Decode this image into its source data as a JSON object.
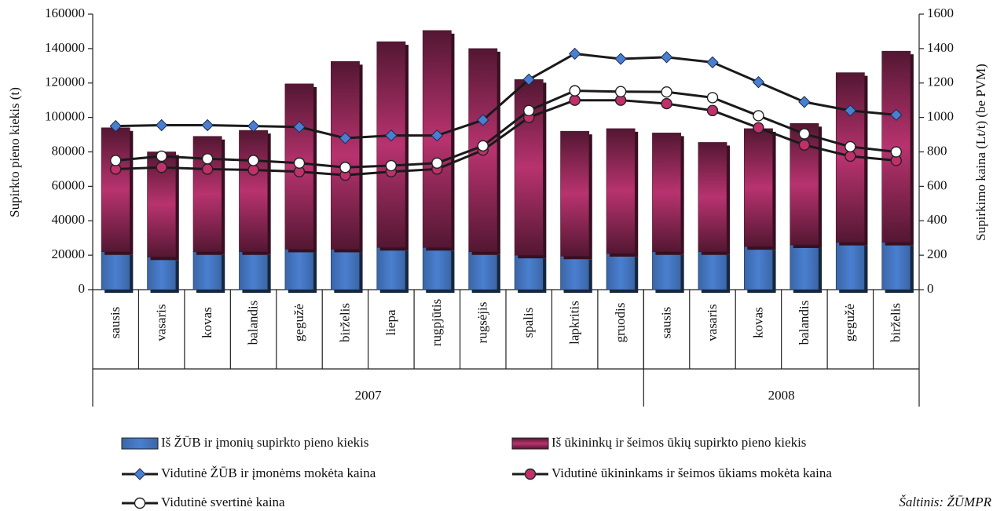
{
  "chart_data": {
    "type": "bar",
    "y_label": "Supirkto pieno kiekis (t)",
    "y2_label": "Supirkimo kaina (Lt/t) (be PVM)",
    "categories": [
      "sausis",
      "vasaris",
      "kovas",
      "balandis",
      "gegužė",
      "birželis",
      "liepa",
      "rugpjūtis",
      "rugsėjis",
      "spalis",
      "lapkritis",
      "gruodis",
      "sausis",
      "vasaris",
      "kovas",
      "balandis",
      "gegužė",
      "birželis"
    ],
    "groups": [
      {
        "name": "2007",
        "count": 12
      },
      {
        "name": "2008",
        "count": 6
      }
    ],
    "ylim": [
      0,
      160000
    ],
    "yticks": [
      0,
      20000,
      40000,
      60000,
      80000,
      100000,
      120000,
      140000,
      160000
    ],
    "y2lim": [
      0,
      1600
    ],
    "y2ticks": [
      0,
      200,
      400,
      600,
      800,
      1000,
      1200,
      1400,
      1600
    ],
    "stacked": true,
    "series": [
      {
        "name": "Iš ŽŪB ir įmonių supirkto pieno kiekis",
        "type": "bar",
        "color": "#4a7fd0",
        "values": [
          22000,
          19000,
          22000,
          22000,
          23500,
          23500,
          24500,
          24500,
          22000,
          20000,
          19500,
          21000,
          22000,
          22000,
          25000,
          26000,
          27500,
          27500
        ]
      },
      {
        "name": "Iš ūkininkų ir šeimos ūkių supirkto pieno kiekis",
        "type": "bar",
        "color": "#b8336f",
        "values": [
          72000,
          61000,
          67000,
          70500,
          96000,
          109000,
          119500,
          126000,
          118000,
          102000,
          72500,
          72500,
          69000,
          63500,
          68500,
          70500,
          98500,
          111000
        ]
      },
      {
        "name": "Vidutinė ŽŪB ir įmonėms mokėta kaina",
        "type": "line",
        "axis": "y2",
        "color": "#4a7fd0",
        "marker": "diamond",
        "values": [
          950,
          955,
          955,
          950,
          945,
          880,
          895,
          895,
          985,
          1220,
          1370,
          1340,
          1350,
          1320,
          1205,
          1090,
          1040,
          1015
        ]
      },
      {
        "name": "Vidutinė ūkininkams ir šeimos ūkiams mokėta kaina",
        "type": "line",
        "axis": "y2",
        "color": "#c0306a",
        "marker": "circle",
        "values": [
          700,
          710,
          700,
          695,
          685,
          665,
          685,
          700,
          810,
          1000,
          1100,
          1100,
          1080,
          1040,
          940,
          840,
          775,
          750
        ]
      },
      {
        "name": "Vidutinė svertinė kaina",
        "type": "line",
        "axis": "y2",
        "color": "#ffffff",
        "marker": "circle",
        "values": [
          750,
          775,
          760,
          750,
          735,
          710,
          720,
          735,
          835,
          1040,
          1155,
          1150,
          1148,
          1115,
          1010,
          905,
          830,
          800
        ]
      }
    ],
    "source": "Šaltinis: ŽŪMPR"
  }
}
